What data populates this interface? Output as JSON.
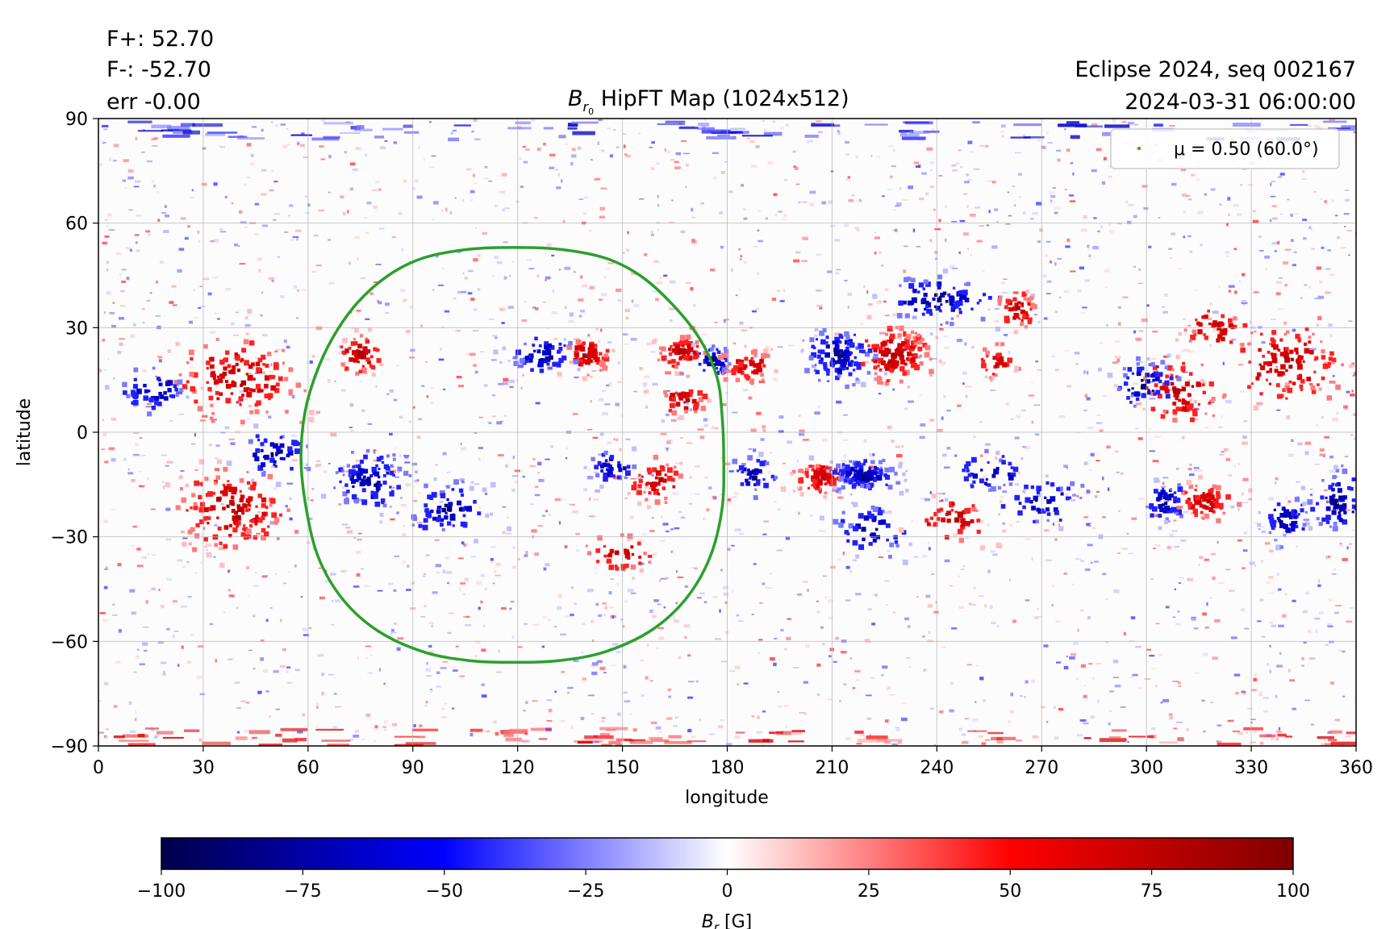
{
  "header": {
    "fplus": "F+: 52.70",
    "fminus": "F-: -52.70",
    "err": "err -0.00",
    "run": "Eclipse 2024, seq 002167",
    "datetime": "2024-03-31 06:00:00"
  },
  "chart_data": {
    "type": "heatmap",
    "title": {
      "main": "B",
      "sub": "r",
      "subsub": "0",
      "rest": " HipFT Map (1024x512)"
    },
    "xlabel": "longitude",
    "ylabel": "latitude",
    "xlim": [
      0,
      360
    ],
    "ylim": [
      -90,
      90
    ],
    "xticks": [
      "0",
      "30",
      "60",
      "90",
      "120",
      "150",
      "180",
      "210",
      "240",
      "270",
      "300",
      "330",
      "360"
    ],
    "yticks": [
      "90",
      "60",
      "30",
      "0",
      "−30",
      "−60",
      "−90"
    ],
    "grid": true,
    "legend": {
      "placement": "top-right",
      "label": "μ = 0.50 (60.0°)",
      "color": "#2ca02c"
    },
    "contour": {
      "name": "μ = 0.50 (60.0°)",
      "color": "#2ca02c",
      "center": [
        119,
        -7
      ],
      "points": [
        [
          119,
          53
        ],
        [
          132,
          52.5
        ],
        [
          145,
          50
        ],
        [
          155,
          45
        ],
        [
          164,
          37
        ],
        [
          172,
          27
        ],
        [
          177,
          16
        ],
        [
          178.5,
          5
        ],
        [
          179,
          -8
        ],
        [
          178.5,
          -22
        ],
        [
          175,
          -36
        ],
        [
          168,
          -48
        ],
        [
          158,
          -57
        ],
        [
          145,
          -63
        ],
        [
          132,
          -65.5
        ],
        [
          119,
          -66
        ],
        [
          106,
          -65.5
        ],
        [
          93,
          -63
        ],
        [
          80,
          -57
        ],
        [
          70,
          -48
        ],
        [
          63,
          -36
        ],
        [
          59.5,
          -22
        ],
        [
          58,
          -8
        ],
        [
          59,
          5
        ],
        [
          62,
          16
        ],
        [
          67,
          27
        ],
        [
          74,
          37
        ],
        [
          83,
          45
        ],
        [
          93,
          50
        ],
        [
          106,
          52.5
        ]
      ]
    },
    "regions": [
      {
        "lon": 40,
        "lat": 15,
        "slon": 16,
        "slat": 10,
        "polarity": "+",
        "n": 140
      },
      {
        "lon": 16,
        "lat": 12,
        "slon": 8,
        "slat": 6,
        "polarity": "-",
        "n": 50
      },
      {
        "lon": 38,
        "lat": -22,
        "slon": 14,
        "slat": 10,
        "polarity": "+",
        "n": 150
      },
      {
        "lon": 50,
        "lat": -6,
        "slon": 8,
        "slat": 6,
        "polarity": "-",
        "n": 50
      },
      {
        "lon": 75,
        "lat": 22,
        "slon": 6,
        "slat": 5,
        "polarity": "+",
        "n": 50
      },
      {
        "lon": 78,
        "lat": -14,
        "slon": 9,
        "slat": 7,
        "polarity": "-",
        "n": 110
      },
      {
        "lon": 100,
        "lat": -22,
        "slon": 10,
        "slat": 6,
        "polarity": "-",
        "n": 70
      },
      {
        "lon": 140,
        "lat": 22,
        "slon": 6,
        "slat": 5,
        "polarity": "+",
        "n": 70
      },
      {
        "lon": 127,
        "lat": 22,
        "slon": 8,
        "slat": 5,
        "polarity": "-",
        "n": 60
      },
      {
        "lon": 167,
        "lat": 23,
        "slon": 6,
        "slat": 4,
        "polarity": "+",
        "n": 70
      },
      {
        "lon": 176,
        "lat": 20,
        "slon": 5,
        "slat": 4,
        "polarity": "-",
        "n": 40
      },
      {
        "lon": 186,
        "lat": 19,
        "slon": 6,
        "slat": 4,
        "polarity": "+",
        "n": 60
      },
      {
        "lon": 168,
        "lat": 9,
        "slon": 6,
        "slat": 4,
        "polarity": "+",
        "n": 40
      },
      {
        "lon": 147,
        "lat": -10,
        "slon": 6,
        "slat": 4,
        "polarity": "-",
        "n": 40
      },
      {
        "lon": 160,
        "lat": -14,
        "slon": 7,
        "slat": 5,
        "polarity": "+",
        "n": 50
      },
      {
        "lon": 150,
        "lat": -35,
        "slon": 8,
        "slat": 5,
        "polarity": "+",
        "n": 40
      },
      {
        "lon": 212,
        "lat": 22,
        "slon": 8,
        "slat": 7,
        "polarity": "-",
        "n": 120
      },
      {
        "lon": 228,
        "lat": 22,
        "slon": 9,
        "slat": 7,
        "polarity": "+",
        "n": 140
      },
      {
        "lon": 207,
        "lat": -13,
        "slon": 6,
        "slat": 4,
        "polarity": "+",
        "n": 110
      },
      {
        "lon": 219,
        "lat": -12,
        "slon": 8,
        "slat": 4,
        "polarity": "-",
        "n": 130
      },
      {
        "lon": 222,
        "lat": -28,
        "slon": 9,
        "slat": 7,
        "polarity": "-",
        "n": 50
      },
      {
        "lon": 188,
        "lat": -12,
        "slon": 6,
        "slat": 5,
        "polarity": "-",
        "n": 40
      },
      {
        "lon": 240,
        "lat": 38,
        "slon": 14,
        "slat": 6,
        "polarity": "-",
        "n": 90
      },
      {
        "lon": 263,
        "lat": 35,
        "slon": 5,
        "slat": 5,
        "polarity": "+",
        "n": 50
      },
      {
        "lon": 257,
        "lat": 20,
        "slon": 5,
        "slat": 4,
        "polarity": "+",
        "n": 30
      },
      {
        "lon": 310,
        "lat": 12,
        "slon": 10,
        "slat": 8,
        "polarity": "+",
        "n": 80
      },
      {
        "lon": 300,
        "lat": 14,
        "slon": 8,
        "slat": 6,
        "polarity": "-",
        "n": 60
      },
      {
        "lon": 340,
        "lat": 20,
        "slon": 14,
        "slat": 10,
        "polarity": "+",
        "n": 120
      },
      {
        "lon": 320,
        "lat": 30,
        "slon": 8,
        "slat": 5,
        "polarity": "+",
        "n": 40
      },
      {
        "lon": 317,
        "lat": -20,
        "slon": 7,
        "slat": 5,
        "polarity": "+",
        "n": 70
      },
      {
        "lon": 305,
        "lat": -20,
        "slon": 6,
        "slat": 5,
        "polarity": "-",
        "n": 50
      },
      {
        "lon": 355,
        "lat": -20,
        "slon": 7,
        "slat": 8,
        "polarity": "-",
        "n": 80
      },
      {
        "lon": 340,
        "lat": -25,
        "slon": 6,
        "slat": 6,
        "polarity": "-",
        "n": 50
      },
      {
        "lon": 270,
        "lat": -20,
        "slon": 12,
        "slat": 6,
        "polarity": "-",
        "n": 50
      },
      {
        "lon": 255,
        "lat": -12,
        "slon": 10,
        "slat": 5,
        "polarity": "-",
        "n": 40
      },
      {
        "lon": 245,
        "lat": -25,
        "slon": 10,
        "slat": 6,
        "polarity": "+",
        "n": 40
      }
    ],
    "polar_bands": [
      {
        "lat": 87,
        "polarity": "-"
      },
      {
        "lat": -87,
        "polarity": "+"
      }
    ],
    "colorbar": {
      "label": {
        "main": "B",
        "sub": "r",
        "unit": " [G]"
      },
      "range": [
        -100,
        100
      ],
      "ticks": [
        "−100",
        "−75",
        "−50",
        "−25",
        "0",
        "25",
        "50",
        "75",
        "100"
      ],
      "colormap": "seismic"
    }
  }
}
